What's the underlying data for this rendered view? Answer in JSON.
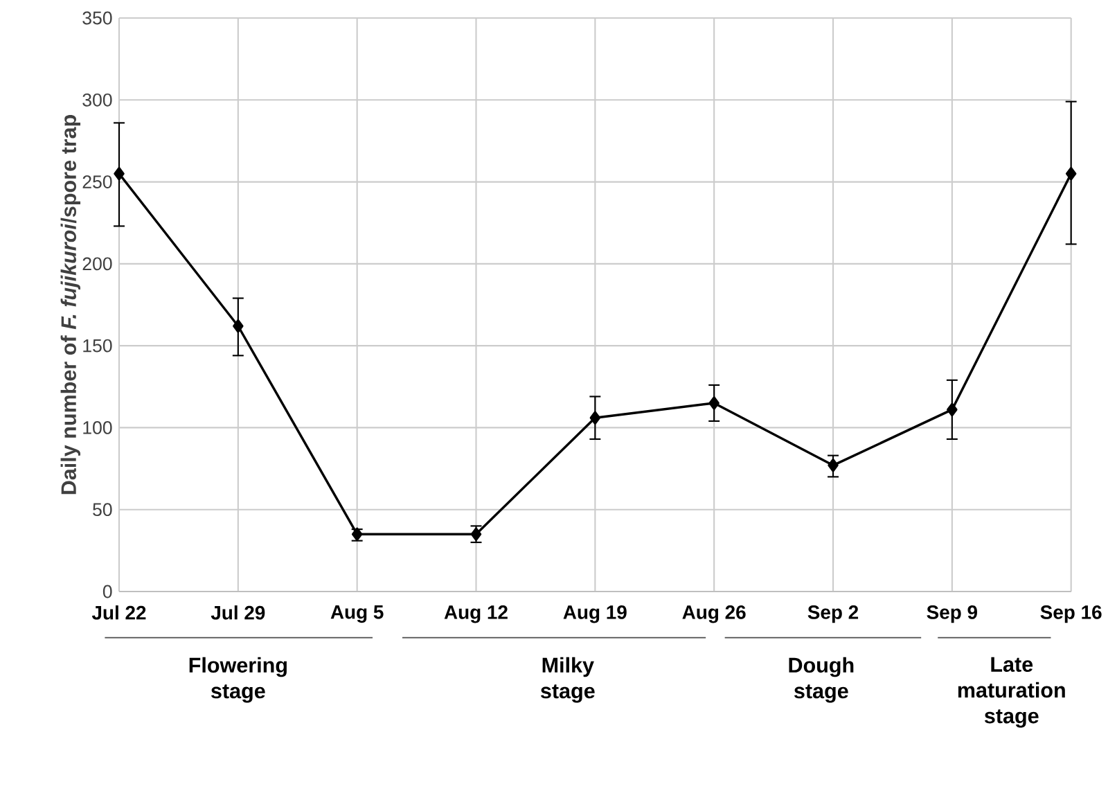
{
  "chart_data": {
    "type": "line",
    "ylabel": "Daily number of *F. fujikuroi*/spore trap",
    "categories": [
      "Jul 22",
      "Jul 29",
      "Aug 5",
      "Aug 12",
      "Aug 19",
      "Aug 26",
      "Sep 2",
      "Sep 9",
      "Sep 16"
    ],
    "series": [
      {
        "color": "#000000",
        "values": [
          255,
          162,
          35,
          35,
          106,
          115,
          77,
          111,
          255
        ],
        "errors": [
          [
            223,
            286
          ],
          [
            144,
            179
          ],
          [
            31,
            38
          ],
          [
            30,
            40
          ],
          [
            93,
            119
          ],
          [
            104,
            126
          ],
          [
            70,
            83
          ],
          [
            93,
            129
          ],
          [
            212,
            299
          ]
        ]
      }
    ],
    "ylim": [
      0,
      350
    ],
    "yticks": [
      0,
      50,
      100,
      150,
      200,
      250,
      300,
      350
    ],
    "grid": true,
    "marker": "diamond",
    "line_style": "solid",
    "annotations": [
      "Flowering stage",
      "Milky stage",
      "Dough stage",
      "Late maturation stage"
    ]
  }
}
